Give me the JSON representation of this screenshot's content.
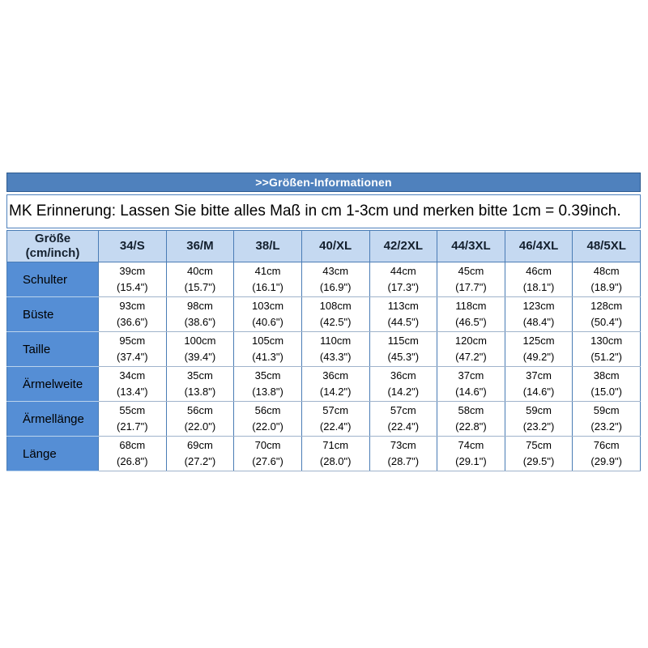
{
  "banner": {
    "title": ">>Größen-Informationen"
  },
  "note": {
    "text": "MK Erinnerung: Lassen Sie bitte alles Maß in cm 1-3cm und merken bitte 1cm = 0.39inch."
  },
  "table": {
    "corner": {
      "line1": "Größe",
      "line2": "(cm/inch)"
    },
    "columns": [
      "34/S",
      "36/M",
      "38/L",
      "40/XL",
      "42/2XL",
      "44/3XL",
      "46/4XL",
      "48/5XL"
    ],
    "rows": [
      {
        "label": "Schulter",
        "values": [
          {
            "cm": "39cm",
            "inch": "(15.4\")"
          },
          {
            "cm": "40cm",
            "inch": "(15.7\")"
          },
          {
            "cm": "41cm",
            "inch": "(16.1\")"
          },
          {
            "cm": "43cm",
            "inch": "(16.9\")"
          },
          {
            "cm": "44cm",
            "inch": "(17.3\")"
          },
          {
            "cm": "45cm",
            "inch": "(17.7\")"
          },
          {
            "cm": "46cm",
            "inch": "(18.1\")"
          },
          {
            "cm": "48cm",
            "inch": "(18.9\")"
          }
        ]
      },
      {
        "label": "Büste",
        "values": [
          {
            "cm": "93cm",
            "inch": "(36.6\")"
          },
          {
            "cm": "98cm",
            "inch": "(38.6\")"
          },
          {
            "cm": "103cm",
            "inch": "(40.6\")"
          },
          {
            "cm": "108cm",
            "inch": "(42.5\")"
          },
          {
            "cm": "113cm",
            "inch": "(44.5\")"
          },
          {
            "cm": "118cm",
            "inch": "(46.5\")"
          },
          {
            "cm": "123cm",
            "inch": "(48.4\")"
          },
          {
            "cm": "128cm",
            "inch": "(50.4\")"
          }
        ]
      },
      {
        "label": "Taille",
        "values": [
          {
            "cm": "95cm",
            "inch": "(37.4\")"
          },
          {
            "cm": "100cm",
            "inch": "(39.4\")"
          },
          {
            "cm": "105cm",
            "inch": "(41.3\")"
          },
          {
            "cm": "110cm",
            "inch": "(43.3\")"
          },
          {
            "cm": "115cm",
            "inch": "(45.3\")"
          },
          {
            "cm": "120cm",
            "inch": "(47.2\")"
          },
          {
            "cm": "125cm",
            "inch": "(49.2\")"
          },
          {
            "cm": "130cm",
            "inch": "(51.2\")"
          }
        ]
      },
      {
        "label": "Ärmelweite",
        "values": [
          {
            "cm": "34cm",
            "inch": "(13.4\")"
          },
          {
            "cm": "35cm",
            "inch": "(13.8\")"
          },
          {
            "cm": "35cm",
            "inch": "(13.8\")"
          },
          {
            "cm": "36cm",
            "inch": "(14.2\")"
          },
          {
            "cm": "36cm",
            "inch": "(14.2\")"
          },
          {
            "cm": "37cm",
            "inch": "(14.6\")"
          },
          {
            "cm": "37cm",
            "inch": "(14.6\")"
          },
          {
            "cm": "38cm",
            "inch": "(15.0\")"
          }
        ]
      },
      {
        "label": "Ärmellänge",
        "values": [
          {
            "cm": "55cm",
            "inch": "(21.7\")"
          },
          {
            "cm": "56cm",
            "inch": "(22.0\")"
          },
          {
            "cm": "56cm",
            "inch": "(22.0\")"
          },
          {
            "cm": "57cm",
            "inch": "(22.4\")"
          },
          {
            "cm": "57cm",
            "inch": "(22.4\")"
          },
          {
            "cm": "58cm",
            "inch": "(22.8\")"
          },
          {
            "cm": "59cm",
            "inch": "(23.2\")"
          },
          {
            "cm": "59cm",
            "inch": "(23.2\")"
          }
        ]
      },
      {
        "label": "Länge",
        "values": [
          {
            "cm": "68cm",
            "inch": "(26.8\")"
          },
          {
            "cm": "69cm",
            "inch": "(27.2\")"
          },
          {
            "cm": "70cm",
            "inch": "(27.6\")"
          },
          {
            "cm": "71cm",
            "inch": "(28.0\")"
          },
          {
            "cm": "73cm",
            "inch": "(28.7\")"
          },
          {
            "cm": "74cm",
            "inch": "(29.1\")"
          },
          {
            "cm": "75cm",
            "inch": "(29.5\")"
          },
          {
            "cm": "76cm",
            "inch": "(29.9\")"
          }
        ]
      }
    ]
  },
  "colors": {
    "banner_bg": "#4f81bd",
    "banner_text": "#ffffff",
    "header_bg": "#c5d9f1",
    "label_column_bg": "#558ed5",
    "border_blue": "#4a7cb5",
    "cell_text": "#000000"
  }
}
